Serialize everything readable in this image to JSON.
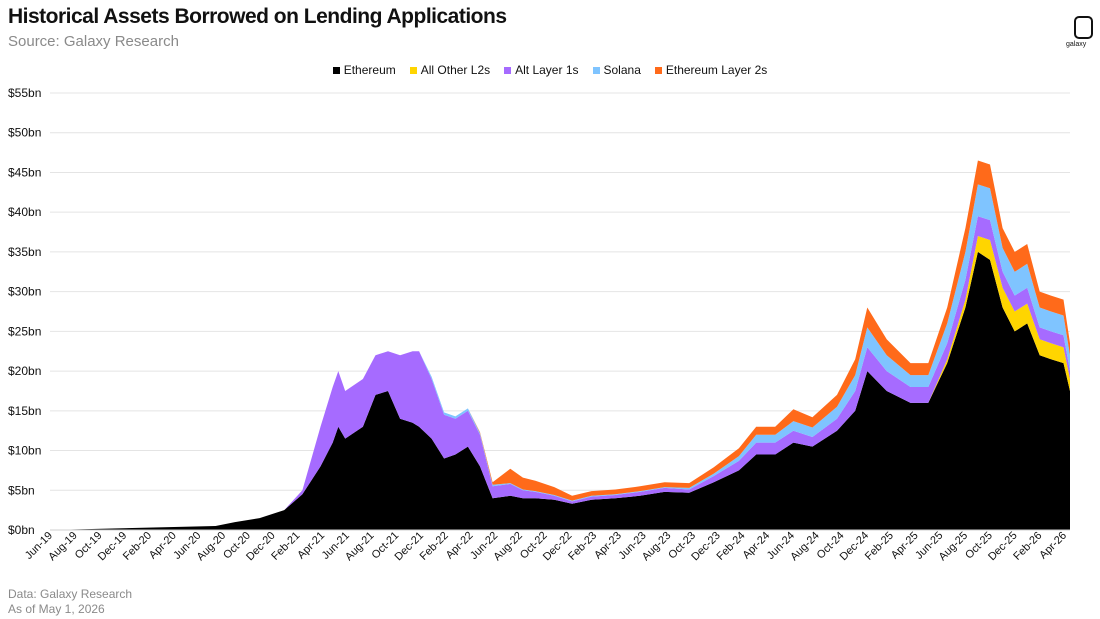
{
  "chart_data": {
    "type": "area",
    "stacked": true,
    "title": "Historical Assets Borrowed on Lending Applications",
    "subtitle": "Source: Galaxy Research",
    "ylim": [
      0,
      55
    ],
    "y_ticks": [
      0,
      5,
      10,
      15,
      20,
      25,
      30,
      35,
      40,
      45,
      50,
      55
    ],
    "y_tick_labels": [
      "$0bn",
      "$5bn",
      "$10bn",
      "$15bn",
      "$20bn",
      "$25bn",
      "$30bn",
      "$35bn",
      "$40bn",
      "$45bn",
      "$50bn",
      "$55bn"
    ],
    "x_tick_labels": [
      "Jun-19",
      "Aug-19",
      "Oct-19",
      "Dec-19",
      "Feb-20",
      "Apr-20",
      "Jun-20",
      "Aug-20",
      "Oct-20",
      "Dec-20",
      "Feb-21",
      "Apr-21",
      "Jun-21",
      "Aug-21",
      "Oct-21",
      "Dec-21",
      "Feb-22",
      "Apr-22",
      "Jun-22",
      "Aug-22",
      "Oct-22",
      "Dec-22",
      "Feb-23",
      "Apr-23",
      "Jun-23",
      "Aug-23",
      "Oct-23",
      "Dec-23",
      "Feb-24",
      "Apr-24",
      "Jun-24",
      "Aug-24",
      "Oct-24",
      "Dec-24",
      "Feb-25",
      "Apr-25",
      "Jun-25",
      "Aug-25",
      "Oct-25",
      "Dec-25",
      "Feb-26",
      "Apr-26"
    ],
    "x_range": [
      "2019-06-01",
      "2026-05-01"
    ],
    "grid": true,
    "legend_position": "top-center",
    "x": [
      "2019-06-01",
      "2020-07-15",
      "2020-09-01",
      "2020-11-01",
      "2021-01-01",
      "2021-02-15",
      "2021-04-01",
      "2021-05-01",
      "2021-05-15",
      "2021-06-01",
      "2021-07-15",
      "2021-08-15",
      "2021-09-15",
      "2021-10-15",
      "2021-11-15",
      "2021-12-01",
      "2022-01-01",
      "2022-02-01",
      "2022-03-01",
      "2022-04-01",
      "2022-05-01",
      "2022-06-01",
      "2022-07-15",
      "2022-08-15",
      "2022-09-15",
      "2022-11-01",
      "2022-12-15",
      "2023-02-01",
      "2023-04-01",
      "2023-06-01",
      "2023-08-01",
      "2023-10-01",
      "2023-12-01",
      "2024-02-01",
      "2024-03-15",
      "2024-05-01",
      "2024-06-15",
      "2024-08-01",
      "2024-10-01",
      "2024-11-15",
      "2024-12-15",
      "2025-02-01",
      "2025-04-01",
      "2025-05-15",
      "2025-07-01",
      "2025-08-15",
      "2025-09-15",
      "2025-10-15",
      "2025-11-15",
      "2025-12-15",
      "2026-01-15",
      "2026-02-15",
      "2026-03-15",
      "2026-04-15",
      "2026-05-01"
    ],
    "series": [
      {
        "name": "Ethereum",
        "color": "#000000",
        "values": [
          0,
          0.5,
          1.0,
          1.5,
          2.5,
          4.5,
          8.0,
          11.0,
          13.0,
          11.5,
          13.0,
          17.0,
          17.5,
          14.0,
          13.5,
          13.0,
          11.5,
          9.0,
          9.5,
          10.5,
          8.0,
          4.0,
          4.3,
          4.0,
          4.0,
          3.8,
          3.3,
          3.8,
          4.0,
          4.3,
          4.8,
          4.7,
          6.0,
          7.5,
          9.5,
          9.5,
          11.0,
          10.5,
          12.5,
          15.0,
          20.0,
          17.5,
          16.0,
          16.0,
          21.0,
          28.0,
          35.0,
          34.0,
          28.0,
          25.0,
          26.0,
          22.0,
          21.5,
          21.0,
          17.5
        ]
      },
      {
        "name": "All Other L2s",
        "color": "#ffd500",
        "values": [
          0,
          0,
          0,
          0,
          0,
          0,
          0,
          0,
          0,
          0,
          0,
          0,
          0,
          0,
          0,
          0,
          0,
          0,
          0,
          0,
          0,
          0,
          0,
          0,
          0,
          0,
          0,
          0,
          0,
          0,
          0,
          0,
          0,
          0,
          0,
          0,
          0,
          0,
          0,
          0,
          0,
          0,
          0,
          0,
          0.5,
          1.0,
          2.0,
          2.5,
          2.5,
          2.5,
          2.5,
          2.0,
          2.0,
          2.0,
          1.5
        ]
      },
      {
        "name": "Alt Layer 1s",
        "color": "#a66bff",
        "values": [
          0,
          0,
          0,
          0,
          0,
          0.5,
          5.0,
          7.0,
          7.0,
          6.0,
          6.0,
          5.0,
          5.0,
          8.0,
          9.0,
          9.5,
          7.5,
          5.5,
          4.5,
          4.5,
          4.0,
          1.5,
          1.5,
          1.0,
          0.8,
          0.5,
          0.3,
          0.4,
          0.4,
          0.5,
          0.5,
          0.4,
          0.8,
          1.2,
          1.5,
          1.5,
          1.5,
          1.2,
          1.5,
          2.5,
          3.0,
          2.5,
          2.0,
          2.0,
          2.0,
          2.5,
          2.5,
          2.5,
          2.0,
          2.0,
          2.0,
          1.5,
          1.5,
          1.5,
          1.0
        ]
      },
      {
        "name": "Solana",
        "color": "#7fc4ff",
        "values": [
          0,
          0,
          0,
          0,
          0,
          0,
          0,
          0,
          0,
          0,
          0,
          0,
          0,
          0,
          0,
          0,
          0.3,
          0.3,
          0.3,
          0.3,
          0.2,
          0.2,
          0.1,
          0.1,
          0.1,
          0.1,
          0.1,
          0.1,
          0.1,
          0.1,
          0.1,
          0.2,
          0.3,
          0.6,
          1.0,
          1.0,
          1.2,
          1.2,
          1.5,
          2.0,
          2.5,
          2.0,
          1.5,
          1.5,
          2.5,
          3.5,
          4.0,
          4.0,
          3.0,
          3.0,
          3.0,
          2.5,
          2.5,
          2.5,
          2.0
        ]
      },
      {
        "name": "Ethereum Layer 2s",
        "color": "#ff6a1a",
        "values": [
          0,
          0,
          0,
          0,
          0,
          0,
          0,
          0,
          0,
          0,
          0,
          0,
          0,
          0,
          0,
          0,
          0,
          0,
          0,
          0,
          0.1,
          0.3,
          1.8,
          1.5,
          1.3,
          1.0,
          0.6,
          0.6,
          0.6,
          0.6,
          0.6,
          0.6,
          0.8,
          1.0,
          1.0,
          1.0,
          1.5,
          1.3,
          1.5,
          2.0,
          2.5,
          2.0,
          1.5,
          1.5,
          2.0,
          3.0,
          3.0,
          3.0,
          2.5,
          2.5,
          2.5,
          2.0,
          2.0,
          2.0,
          1.5
        ]
      }
    ]
  },
  "footer": {
    "data_source": "Data: Galaxy Research",
    "as_of": "As of May 1, 2026"
  },
  "logo": {
    "text": "galaxy",
    "icon": "galaxy-logo-icon"
  }
}
